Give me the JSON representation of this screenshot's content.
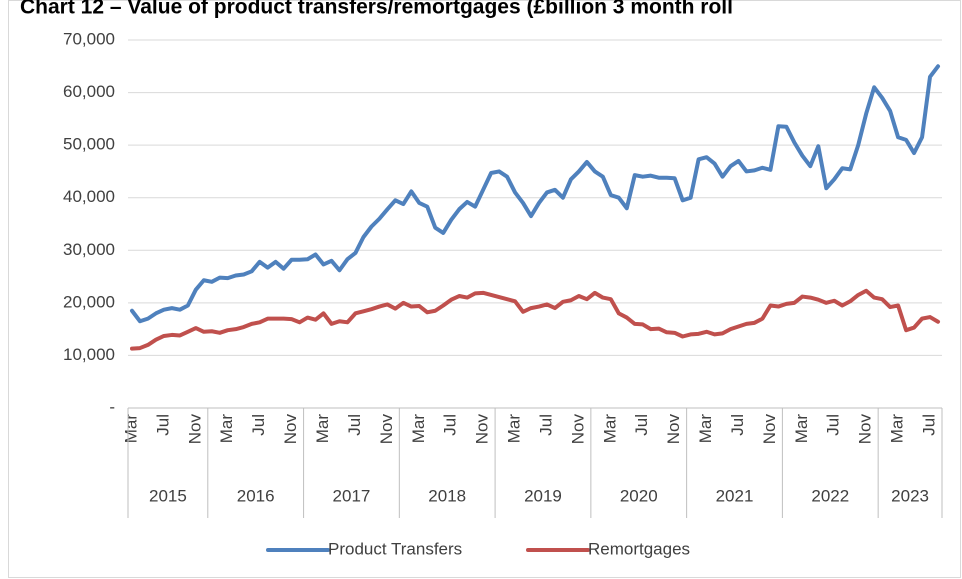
{
  "chart_data": {
    "type": "line",
    "title": "Chart 12 – Value of product transfers/remortgages (£billion 3 month roll",
    "categories": [
      "Mar",
      null,
      null,
      null,
      "Jul",
      null,
      null,
      null,
      "Nov",
      null,
      null,
      null,
      "Mar",
      null,
      null,
      null,
      "Jul",
      null,
      null,
      null,
      "Nov",
      null,
      null,
      null,
      "Mar",
      null,
      null,
      null,
      "Jul",
      null,
      null,
      null,
      "Nov",
      null,
      null,
      null,
      "Mar",
      null,
      null,
      null,
      "Jul",
      null,
      null,
      null,
      "Nov",
      null,
      null,
      null,
      "Mar",
      null,
      null,
      null,
      "Jul",
      null,
      null,
      null,
      "Nov",
      null,
      null,
      null,
      "Mar",
      null,
      null,
      null,
      "Jul",
      null,
      null,
      null,
      "Nov",
      null,
      null,
      null,
      "Mar",
      null,
      null,
      null,
      "Jul",
      null,
      null,
      null,
      "Nov",
      null,
      null,
      null,
      "Mar",
      null,
      null,
      null,
      "Jul",
      null,
      null,
      null,
      "Nov",
      null,
      null,
      null,
      "Mar",
      null,
      null,
      null,
      "Jul",
      null
    ],
    "x_groups": [
      {
        "label": "2015",
        "count": 10
      },
      {
        "label": "2016",
        "count": 12
      },
      {
        "label": "2017",
        "count": 12
      },
      {
        "label": "2018",
        "count": 12
      },
      {
        "label": "2019",
        "count": 12
      },
      {
        "label": "2020",
        "count": 12
      },
      {
        "label": "2021",
        "count": 12
      },
      {
        "label": "2022",
        "count": 12
      },
      {
        "label": "2023",
        "count": 8
      }
    ],
    "series": [
      {
        "name": "Product Transfers",
        "color": "#4f81bd",
        "values": [
          18500,
          16500,
          17000,
          18000,
          18700,
          19000,
          18700,
          19500,
          22500,
          24300,
          24000,
          24800,
          24700,
          25200,
          25400,
          26000,
          27800,
          26700,
          27800,
          26500,
          28200,
          28200,
          28300,
          29200,
          27300,
          28000,
          26200,
          28300,
          29500,
          32500,
          34500,
          36000,
          37800,
          39500,
          38800,
          41200,
          39000,
          38300,
          34300,
          33300,
          35800,
          37800,
          39200,
          38300,
          41500,
          44700,
          45000,
          44000,
          41000,
          39000,
          36500,
          39000,
          41000,
          41500,
          40000,
          43500,
          45000,
          46800,
          45000,
          44000,
          40500,
          40000,
          38000,
          44300,
          44000,
          44200,
          43800,
          43800,
          43700,
          39500,
          40000,
          47300,
          47700,
          46500,
          44000,
          46000,
          47000,
          45000,
          45200,
          45700,
          45300,
          53600,
          53500,
          50500,
          48000,
          46000,
          49800,
          41800,
          43500,
          45600,
          45400,
          50000,
          56000,
          61000,
          59000,
          56500,
          51500,
          51000,
          48500,
          51500,
          63000,
          65000
        ]
      },
      {
        "name": "Remortgages",
        "color": "#c0504d",
        "values": [
          11300,
          11400,
          12000,
          13000,
          13700,
          13900,
          13800,
          14500,
          15200,
          14500,
          14600,
          14300,
          14800,
          15000,
          15400,
          16000,
          16300,
          17000,
          17000,
          17000,
          16900,
          16300,
          17200,
          16800,
          18000,
          16000,
          16500,
          16300,
          18000,
          18400,
          18800,
          19300,
          19700,
          18900,
          20000,
          19300,
          19400,
          18200,
          18500,
          19500,
          20600,
          21300,
          21000,
          21800,
          21900,
          21500,
          21100,
          20700,
          20300,
          18300,
          19000,
          19300,
          19700,
          19000,
          20200,
          20500,
          21300,
          20700,
          21900,
          21000,
          20700,
          18000,
          17200,
          16000,
          15900,
          15000,
          15100,
          14400,
          14300,
          13600,
          14000,
          14100,
          14500,
          14000,
          14200,
          15000,
          15500,
          16000,
          16200,
          17000,
          19500,
          19300,
          19800,
          20000,
          21200,
          21000,
          20600,
          20000,
          20400,
          19500,
          20300,
          21500,
          22300,
          21000,
          20700,
          19200,
          19500,
          14800,
          15300,
          17000,
          17300,
          16400
        ]
      }
    ],
    "ylim": [
      0,
      70000
    ],
    "yticks": [
      {
        "value": 0,
        "label": "-"
      },
      {
        "value": 10000,
        "label": "10,000"
      },
      {
        "value": 20000,
        "label": "20,000"
      },
      {
        "value": 30000,
        "label": "30,000"
      },
      {
        "value": 40000,
        "label": "40,000"
      },
      {
        "value": 50000,
        "label": "50,000"
      },
      {
        "value": 60000,
        "label": "60,000"
      },
      {
        "value": 70000,
        "label": "70,000"
      }
    ],
    "grid": true,
    "legend": "bottom"
  }
}
